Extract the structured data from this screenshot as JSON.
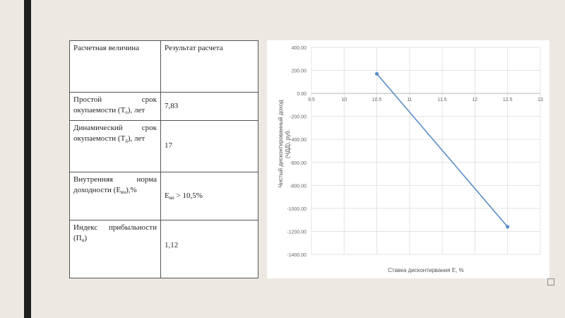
{
  "table": {
    "header": {
      "col1": "Расчетная величина",
      "col2": "Результат расчета"
    },
    "rows": [
      {
        "name": "Простой срок окупаемости (T",
        "sub": "о",
        "tail": "), лет",
        "value": "7,83"
      },
      {
        "name": "Динамический срок окупаемости (T",
        "sub": "д",
        "tail": "), лет",
        "value": "17"
      },
      {
        "name": "Внутренняя норма доходности (E",
        "sub": "вн",
        "tail": "),%",
        "value_prefix": "E",
        "value_sub": "вн",
        "value_tail": " > 10,5%"
      },
      {
        "name": "Индекс прибыльности (П",
        "sub": "и",
        "tail": ")",
        "value": "1,12"
      }
    ]
  },
  "chart_data": {
    "type": "line",
    "xlabel": "Ставка дисконтирвания E, %",
    "ylabel_lines": [
      "Чистый дисконтированный доход",
      "(ЧДД), руб."
    ],
    "xlim": [
      9.5,
      13
    ],
    "ylim": [
      -1400,
      400
    ],
    "x_ticks": [
      "9.5",
      "10",
      "10.5",
      "11",
      "11.5",
      "12",
      "12.5",
      "13"
    ],
    "y_ticks": [
      "400.00",
      "200.00",
      "0.00",
      "-200.00",
      "-400.00",
      "-600.00",
      "-800.00",
      "-1000.00",
      "-1200.00",
      "-1400.00"
    ],
    "series": [
      {
        "x": [
          10.5,
          12.5
        ],
        "y": [
          170,
          -1160
        ],
        "color": "#5b8fc7"
      }
    ],
    "grid": true
  }
}
